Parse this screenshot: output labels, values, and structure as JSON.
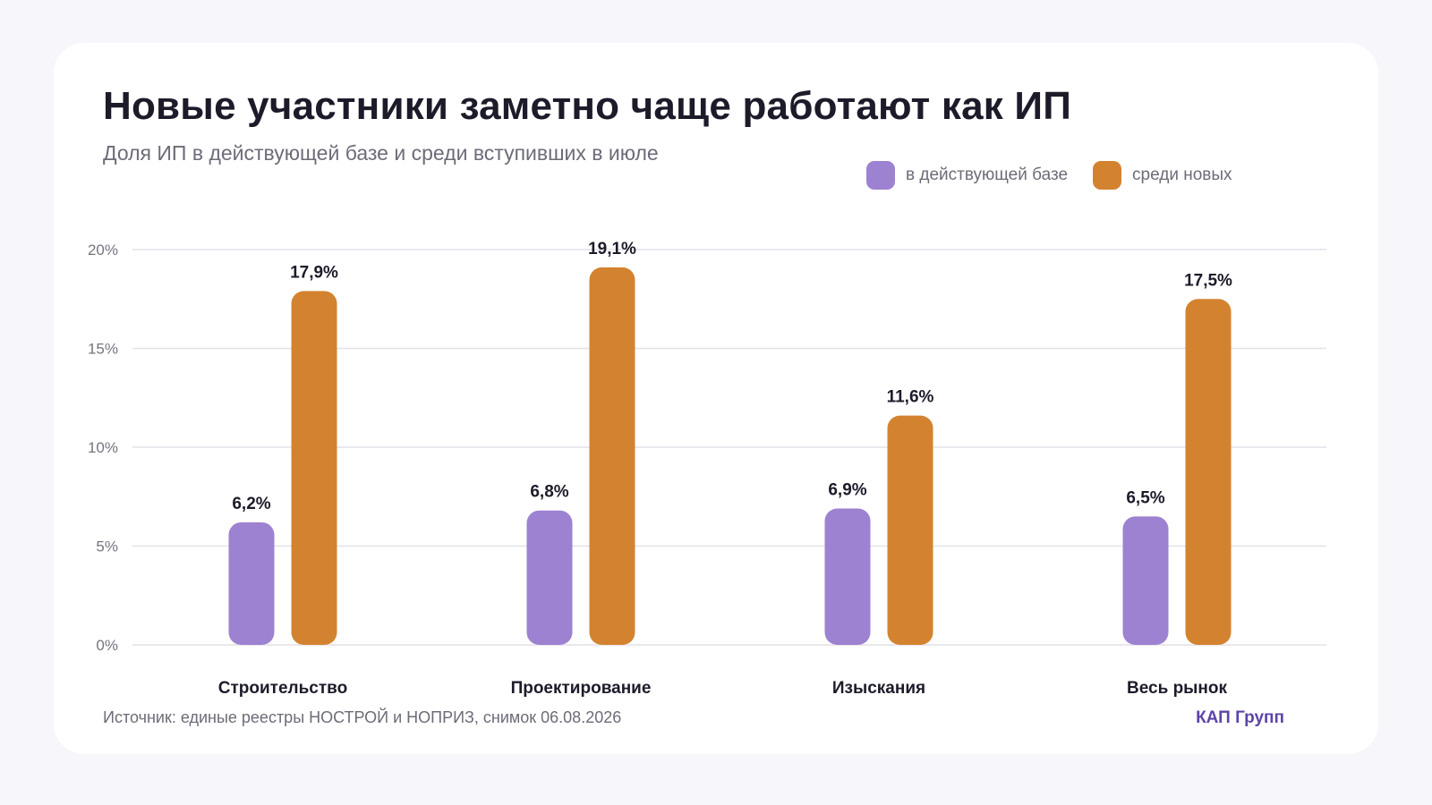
{
  "header": {
    "title": "Новые участники заметно чаще работают как ИП",
    "subtitle": "Доля ИП в действующей базе и среди вступивших в июле"
  },
  "colors": {
    "base": "#9d82d1",
    "new": "#d38330",
    "grid": "#e3e1e8",
    "tick": "#77737f",
    "label": "#1d1b2a",
    "brand": "#5d44a8"
  },
  "chart_data": {
    "type": "bar",
    "title": "Новые участники заметно чаще работают как ИП",
    "subtitle": "Доля ИП в действующей базе и среди вступивших в июле",
    "categories": [
      "Строительство",
      "Проектирование",
      "Изыскания",
      "Весь рынок"
    ],
    "series": [
      {
        "name": "в действующей базе",
        "values": [
          6.2,
          6.8,
          6.9,
          6.5
        ],
        "labels": [
          "6,2%",
          "6,8%",
          "6,9%",
          "6,5%"
        ],
        "color": "#9d82d1"
      },
      {
        "name": "среди новых",
        "values": [
          17.9,
          19.1,
          11.6,
          17.5
        ],
        "labels": [
          "17,9%",
          "19,1%",
          "11,6%",
          "17,5%"
        ],
        "color": "#d38330"
      }
    ],
    "ylim": [
      0,
      20
    ],
    "yticks": [
      0,
      5,
      10,
      15,
      20
    ],
    "ytick_labels": [
      "0%",
      "5%",
      "10%",
      "15%",
      "20%"
    ],
    "xlabel": "",
    "ylabel": "",
    "grid": true,
    "legend_position": "top-right"
  },
  "footer": {
    "source": "Источник: единые реестры НОСТРОЙ и НОПРИЗ, снимок 06.08.2026",
    "brand": "КАП Групп"
  }
}
